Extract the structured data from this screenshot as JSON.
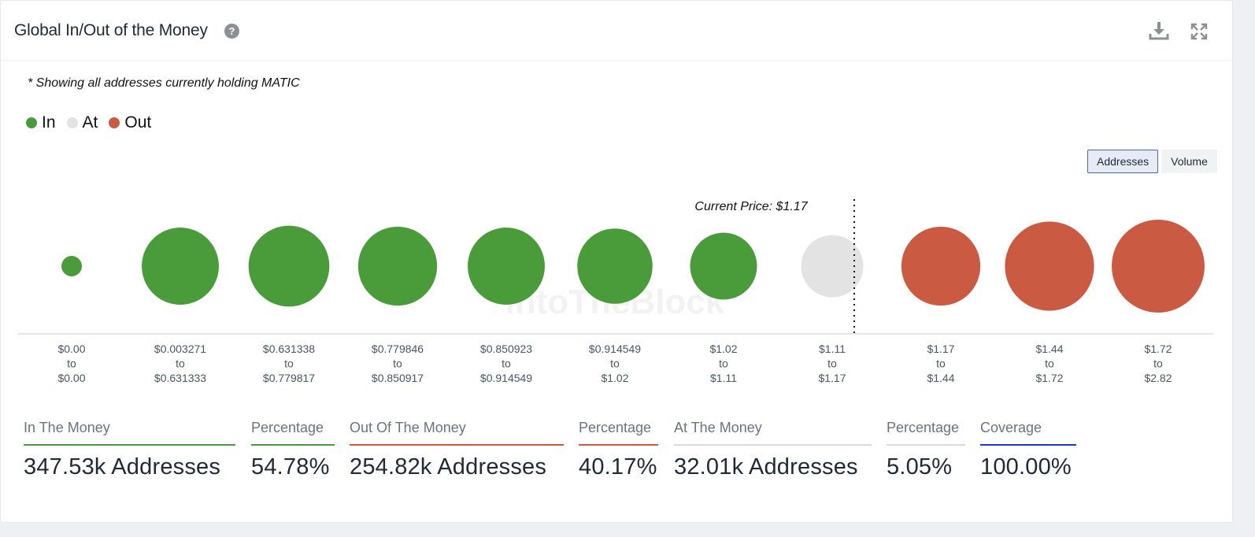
{
  "header": {
    "title": "Global In/Out of the Money",
    "help_glyph": "?"
  },
  "note": "* Showing all addresses currently holding MATIC",
  "legend": [
    {
      "label": "In",
      "color": "#4a9c3b"
    },
    {
      "label": "At",
      "color": "#e3e3e3"
    },
    {
      "label": "Out",
      "color": "#cb5a42"
    }
  ],
  "toggle": {
    "addresses_label": "Addresses",
    "volume_label": "Volume",
    "selected": "Addresses"
  },
  "watermark": "IntoTheBlock",
  "chart_data": {
    "type": "bubble",
    "title": "Global In/Out of the Money",
    "current_price_label": "Current Price: $1.17",
    "categories": [
      {
        "from": "$0.00",
        "to": "$0.00",
        "status": "in",
        "rel_size": 0.22
      },
      {
        "from": "$0.003271",
        "to": "$0.631333",
        "status": "in",
        "rel_size": 0.83
      },
      {
        "from": "$0.631338",
        "to": "$0.779817",
        "status": "in",
        "rel_size": 0.87
      },
      {
        "from": "$0.779846",
        "to": "$0.850917",
        "status": "in",
        "rel_size": 0.85
      },
      {
        "from": "$0.850923",
        "to": "$0.914549",
        "status": "in",
        "rel_size": 0.83
      },
      {
        "from": "$0.914549",
        "to": "$1.02",
        "status": "in",
        "rel_size": 0.81
      },
      {
        "from": "$1.02",
        "to": "$1.11",
        "status": "in",
        "rel_size": 0.72
      },
      {
        "from": "$1.11",
        "to": "$1.17",
        "status": "at",
        "rel_size": 0.67
      },
      {
        "from": "$1.17",
        "to": "$1.44",
        "status": "out",
        "rel_size": 0.85
      },
      {
        "from": "$1.44",
        "to": "$1.72",
        "status": "out",
        "rel_size": 0.96
      },
      {
        "from": "$1.72",
        "to": "$2.82",
        "status": "out",
        "rel_size": 1.0
      }
    ],
    "range_separator": "to",
    "colors": {
      "in": "#4a9c3b",
      "at": "#e3e3e3",
      "out": "#cb5a42"
    }
  },
  "stats": [
    {
      "label": "In The Money",
      "value": "347.53k Addresses",
      "color": "#4a9c3b"
    },
    {
      "label": "Percentage",
      "value": "54.78%",
      "color": "#4a9c3b"
    },
    {
      "label": "Out Of The Money",
      "value": "254.82k Addresses",
      "color": "#cb5a42"
    },
    {
      "label": "Percentage",
      "value": "40.17%",
      "color": "#cb5a42"
    },
    {
      "label": "At The Money",
      "value": "32.01k Addresses",
      "color": "#d9d9d9"
    },
    {
      "label": "Percentage",
      "value": "5.05%",
      "color": "#d9d9d9"
    },
    {
      "label": "Coverage",
      "value": "100.00%",
      "color": "#2233cc"
    }
  ]
}
